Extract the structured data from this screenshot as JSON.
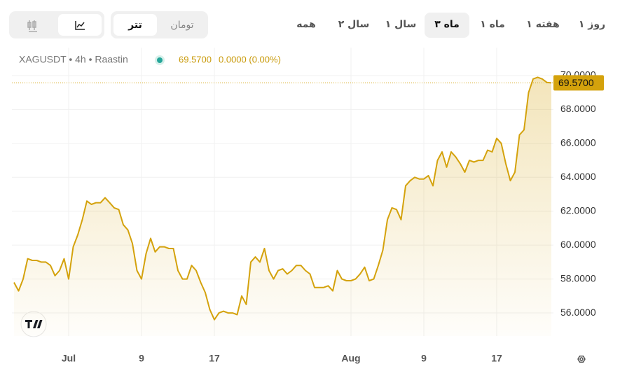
{
  "period_tabs": [
    "۱ روز",
    "۱ هفته",
    "۱ ماه",
    "۳ ماه",
    "۱ سال",
    "۲ سال",
    "همه"
  ],
  "currency_tabs": [
    "تومان",
    "تتر"
  ],
  "chart_data": {
    "type": "area",
    "title": "XAGUSDT • 4h • Raastin",
    "header_values": [
      "69.5700",
      "0.0000 (0.00%)"
    ],
    "last_value": {
      "value": 69.57,
      "label": "69.5700"
    },
    "color": "#d4a20c",
    "grid": true,
    "categories": [
      null,
      null,
      null,
      null,
      null,
      null,
      null,
      null,
      null,
      null,
      null,
      null,
      "Jul",
      null,
      null,
      null,
      null,
      null,
      null,
      null,
      null,
      null,
      null,
      null,
      null,
      null,
      null,
      null,
      "9",
      null,
      null,
      null,
      null,
      null,
      null,
      null,
      null,
      null,
      null,
      null,
      null,
      null,
      null,
      null,
      "17",
      null,
      null,
      null,
      null,
      null,
      null,
      null,
      null,
      null,
      null,
      null,
      null,
      null,
      null,
      null,
      null,
      null,
      null,
      null,
      null,
      null,
      null,
      null,
      null,
      null,
      null,
      null,
      null,
      null,
      "Aug",
      null,
      null,
      null,
      null,
      null,
      null,
      null,
      null,
      null,
      null,
      null,
      null,
      null,
      null,
      null,
      "9",
      null,
      null,
      null,
      null,
      null,
      null,
      null,
      null,
      null,
      null,
      null,
      null,
      null,
      null,
      null,
      "17",
      null,
      null,
      null,
      null,
      null,
      null,
      null,
      null,
      null,
      null,
      null,
      null
    ],
    "values": [
      57.8,
      57.3,
      58.0,
      59.2,
      59.1,
      59.1,
      59.0,
      59.0,
      58.8,
      58.2,
      58.5,
      59.2,
      58.0,
      59.9,
      60.6,
      61.5,
      62.6,
      62.4,
      62.5,
      62.5,
      62.8,
      62.5,
      62.2,
      62.1,
      61.2,
      60.9,
      60.1,
      58.5,
      58.0,
      59.5,
      60.4,
      59.6,
      59.9,
      59.9,
      59.8,
      59.8,
      58.5,
      58.0,
      58.0,
      58.8,
      58.5,
      57.8,
      57.2,
      56.2,
      55.6,
      56.0,
      56.1,
      56.0,
      56.0,
      55.9,
      57.0,
      56.5,
      59.0,
      59.3,
      59.0,
      59.8,
      58.5,
      58.0,
      58.5,
      58.6,
      58.3,
      58.5,
      58.8,
      58.8,
      58.5,
      58.3,
      57.5,
      57.5,
      57.5,
      57.6,
      57.3,
      58.5,
      58.0,
      57.9,
      57.9,
      58.0,
      58.3,
      58.7,
      57.9,
      58.0,
      58.8,
      59.7,
      61.5,
      62.2,
      62.1,
      61.5,
      63.5,
      63.8,
      64.0,
      63.9,
      63.9,
      64.1,
      63.5,
      65.0,
      65.5,
      64.6,
      65.5,
      65.2,
      64.8,
      64.3,
      65.0,
      64.9,
      65.0,
      65.0,
      65.6,
      65.5,
      66.3,
      66.0,
      64.8,
      63.8,
      64.3,
      66.5,
      66.8,
      69.0,
      69.8,
      69.9,
      69.8,
      69.6,
      69.57
    ],
    "ylim": [
      54.64,
      71.65
    ],
    "yticks": [
      {
        "value": 56,
        "label": "56.0000"
      },
      {
        "value": 58,
        "label": "58.0000"
      },
      {
        "value": 60,
        "label": "60.0000"
      },
      {
        "value": 62,
        "label": "62.0000"
      },
      {
        "value": 64,
        "label": "64.0000"
      },
      {
        "value": 66,
        "label": "66.0000"
      },
      {
        "value": 68,
        "label": "68.0000"
      },
      {
        "value": 70,
        "label": "70.0000"
      }
    ]
  }
}
